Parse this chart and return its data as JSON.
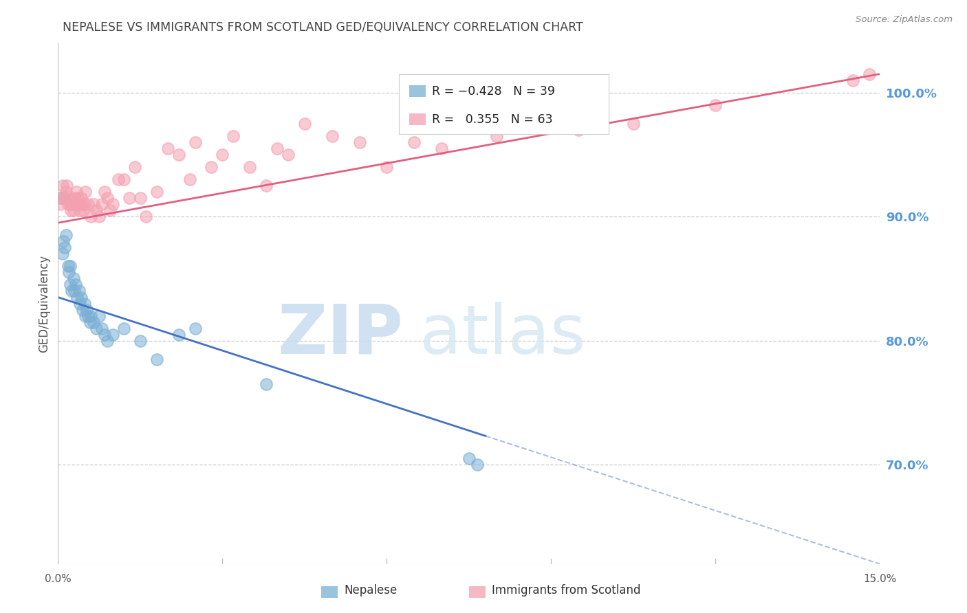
{
  "title": "NEPALESE VS IMMIGRANTS FROM SCOTLAND GED/EQUIVALENCY CORRELATION CHART",
  "source": "Source: ZipAtlas.com",
  "ylabel": "GED/Equivalency",
  "x_range": [
    0.0,
    15.0
  ],
  "y_range": [
    62.0,
    104.0
  ],
  "y_ticks": [
    70.0,
    80.0,
    90.0,
    100.0
  ],
  "legend_label_blue": "Nepalese",
  "legend_label_pink": "Immigrants from Scotland",
  "blue_color": "#7BAFD4",
  "pink_color": "#F4A0B0",
  "blue_line_color": "#4472C4",
  "pink_line_color": "#E06080",
  "nepalese_points": [
    [
      0.05,
      91.5
    ],
    [
      0.08,
      87.0
    ],
    [
      0.1,
      88.0
    ],
    [
      0.12,
      87.5
    ],
    [
      0.15,
      88.5
    ],
    [
      0.18,
      86.0
    ],
    [
      0.2,
      85.5
    ],
    [
      0.22,
      86.0
    ],
    [
      0.22,
      84.5
    ],
    [
      0.25,
      84.0
    ],
    [
      0.28,
      85.0
    ],
    [
      0.3,
      84.0
    ],
    [
      0.32,
      84.5
    ],
    [
      0.35,
      83.5
    ],
    [
      0.38,
      84.0
    ],
    [
      0.4,
      83.0
    ],
    [
      0.42,
      83.5
    ],
    [
      0.45,
      82.5
    ],
    [
      0.48,
      83.0
    ],
    [
      0.5,
      82.0
    ],
    [
      0.52,
      82.5
    ],
    [
      0.55,
      82.0
    ],
    [
      0.58,
      81.5
    ],
    [
      0.6,
      82.0
    ],
    [
      0.65,
      81.5
    ],
    [
      0.7,
      81.0
    ],
    [
      0.75,
      82.0
    ],
    [
      0.8,
      81.0
    ],
    [
      0.85,
      80.5
    ],
    [
      0.9,
      80.0
    ],
    [
      1.0,
      80.5
    ],
    [
      1.2,
      81.0
    ],
    [
      1.5,
      80.0
    ],
    [
      1.8,
      78.5
    ],
    [
      2.2,
      80.5
    ],
    [
      2.5,
      81.0
    ],
    [
      3.8,
      76.5
    ],
    [
      7.5,
      70.5
    ],
    [
      7.65,
      70.0
    ]
  ],
  "scotland_points": [
    [
      0.05,
      91.0
    ],
    [
      0.08,
      92.5
    ],
    [
      0.1,
      91.5
    ],
    [
      0.12,
      91.5
    ],
    [
      0.14,
      92.0
    ],
    [
      0.16,
      92.5
    ],
    [
      0.18,
      91.0
    ],
    [
      0.2,
      91.5
    ],
    [
      0.22,
      91.0
    ],
    [
      0.24,
      90.5
    ],
    [
      0.26,
      91.0
    ],
    [
      0.28,
      90.5
    ],
    [
      0.3,
      91.5
    ],
    [
      0.32,
      91.0
    ],
    [
      0.34,
      92.0
    ],
    [
      0.36,
      91.5
    ],
    [
      0.38,
      91.0
    ],
    [
      0.4,
      90.5
    ],
    [
      0.42,
      91.5
    ],
    [
      0.44,
      91.0
    ],
    [
      0.46,
      90.5
    ],
    [
      0.48,
      91.0
    ],
    [
      0.5,
      92.0
    ],
    [
      0.55,
      91.0
    ],
    [
      0.6,
      90.0
    ],
    [
      0.65,
      91.0
    ],
    [
      0.7,
      90.5
    ],
    [
      0.75,
      90.0
    ],
    [
      0.8,
      91.0
    ],
    [
      0.85,
      92.0
    ],
    [
      0.9,
      91.5
    ],
    [
      0.95,
      90.5
    ],
    [
      1.0,
      91.0
    ],
    [
      1.1,
      93.0
    ],
    [
      1.2,
      93.0
    ],
    [
      1.3,
      91.5
    ],
    [
      1.4,
      94.0
    ],
    [
      1.5,
      91.5
    ],
    [
      1.6,
      90.0
    ],
    [
      1.8,
      92.0
    ],
    [
      2.0,
      95.5
    ],
    [
      2.2,
      95.0
    ],
    [
      2.4,
      93.0
    ],
    [
      2.5,
      96.0
    ],
    [
      2.8,
      94.0
    ],
    [
      3.0,
      95.0
    ],
    [
      3.2,
      96.5
    ],
    [
      3.5,
      94.0
    ],
    [
      3.8,
      92.5
    ],
    [
      4.0,
      95.5
    ],
    [
      4.2,
      95.0
    ],
    [
      4.5,
      97.5
    ],
    [
      5.0,
      96.5
    ],
    [
      5.5,
      96.0
    ],
    [
      6.0,
      94.0
    ],
    [
      6.5,
      96.0
    ],
    [
      7.0,
      95.5
    ],
    [
      8.0,
      96.5
    ],
    [
      9.5,
      97.0
    ],
    [
      10.5,
      97.5
    ],
    [
      12.0,
      99.0
    ],
    [
      14.5,
      101.0
    ],
    [
      14.8,
      101.5
    ]
  ],
  "blue_trendline_x0": 0.0,
  "blue_trendline_y0": 83.5,
  "blue_trendline_x1": 15.0,
  "blue_trendline_y1": 62.0,
  "blue_solid_end_x": 7.8,
  "pink_trendline_x0": 0.0,
  "pink_trendline_y0": 89.5,
  "pink_trendline_x1": 15.0,
  "pink_trendline_y1": 101.5,
  "grid_color": "#CCCCCC",
  "bg_color": "#FFFFFF",
  "title_color": "#444444",
  "right_label_color": "#5599DD",
  "source_color": "#888888"
}
